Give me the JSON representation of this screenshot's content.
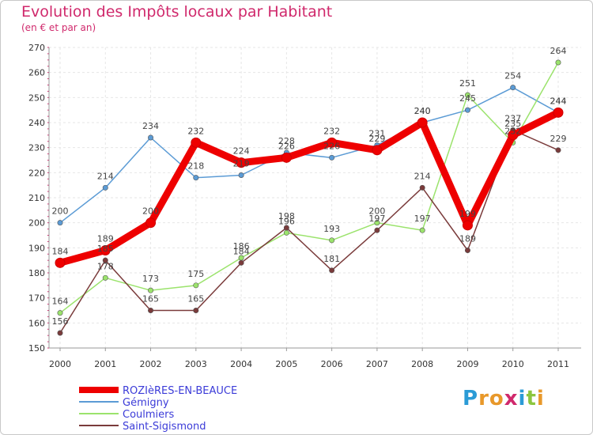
{
  "title": "Evolution des Impôts locaux par Habitant",
  "subtitle": "(en € et par an)",
  "logo": "Proxiti",
  "chart_data": {
    "type": "line",
    "title": "Evolution des Impôts locaux par Habitant",
    "ylabel": "(en € et par an)",
    "xlabel": "",
    "ylim": [
      150,
      270
    ],
    "yticks": [
      150,
      160,
      170,
      180,
      190,
      200,
      210,
      220,
      230,
      240,
      250,
      260,
      270
    ],
    "categories": [
      "2000",
      "2001",
      "2002",
      "2003",
      "2004",
      "2005",
      "2006",
      "2007",
      "2008",
      "2009",
      "2010",
      "2011"
    ],
    "grid": true,
    "legend": "bottom-left",
    "series": [
      {
        "name": "ROZIèRES-EN-BEAUCE",
        "color": "#ee0000",
        "values": [
          184,
          189,
          200,
          232,
          224,
          226,
          232,
          229,
          240,
          199,
          235,
          244
        ],
        "labels": [
          "184",
          "189",
          "200",
          "232",
          "224",
          "226",
          "232",
          "229",
          "240",
          "199",
          "235",
          "244"
        ]
      },
      {
        "name": "Gémigny",
        "color": "#5b9bd5",
        "values": [
          200,
          214,
          234,
          218,
          219,
          228,
          226,
          231,
          240,
          245,
          254,
          244
        ],
        "labels": [
          "200",
          "214",
          "234",
          "218",
          "219",
          "228",
          "226",
          "231",
          "240",
          "245",
          "254",
          "244"
        ]
      },
      {
        "name": "Coulmiers",
        "color": "#9be36c",
        "values": [
          164,
          178,
          173,
          175,
          186,
          196,
          193,
          200,
          197,
          251,
          232,
          264
        ],
        "labels": [
          "164",
          "178",
          "173",
          "175",
          "186",
          "196",
          "193",
          "200",
          "197",
          "251",
          "232",
          "264"
        ]
      },
      {
        "name": "Saint-Sigismond",
        "color": "#7a3b3b",
        "values": [
          156,
          185,
          165,
          165,
          184,
          198,
          181,
          197,
          214,
          189,
          237,
          229
        ],
        "labels": [
          "156",
          "185",
          "165",
          "165",
          "184",
          "198",
          "181",
          "197",
          "214",
          "189",
          "237",
          "229"
        ]
      }
    ]
  }
}
